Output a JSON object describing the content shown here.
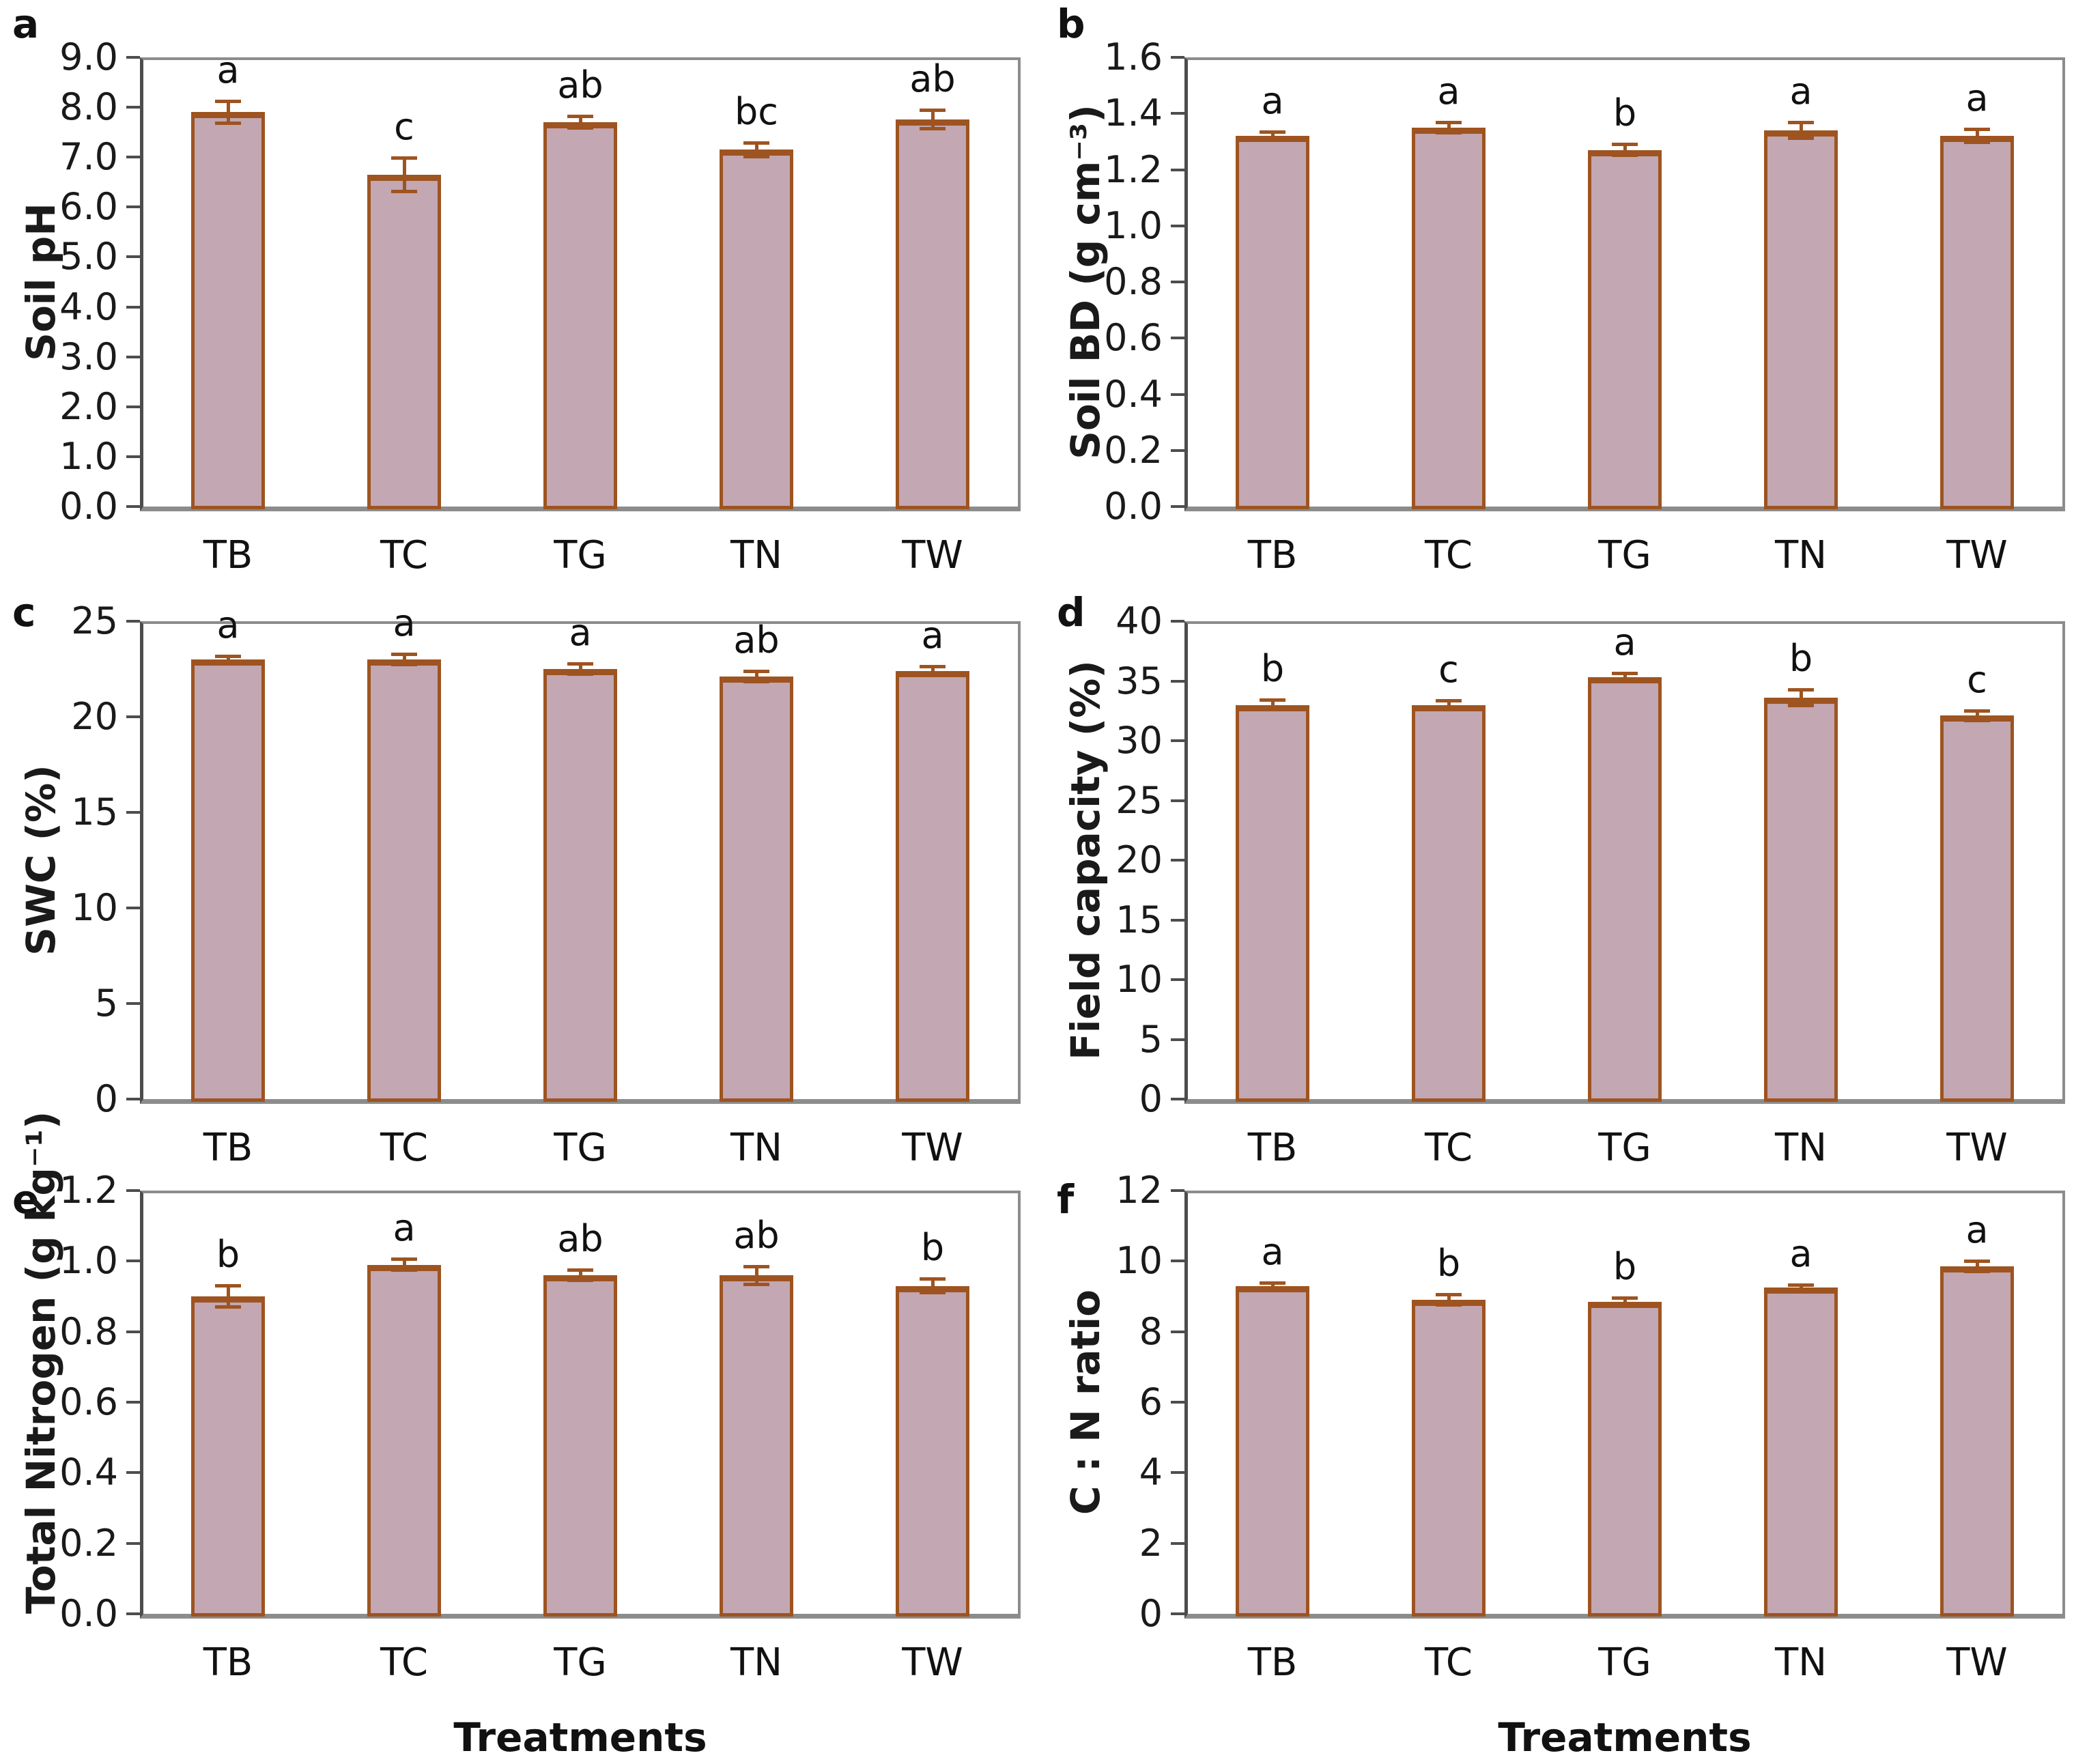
{
  "figure": {
    "background": "#ffffff",
    "panel_letters": [
      "a",
      "b",
      "c",
      "d",
      "e",
      "f"
    ]
  },
  "colors": {
    "bar_fill": "#c3a7b3",
    "bar_border": "#9e5420",
    "error_bar": "#9e5420",
    "axis_left": "#4d4d4d",
    "frame": "#8c8c8c",
    "text": "#1a1a1a"
  },
  "chart_data": [
    {
      "panel": "a",
      "type": "bar",
      "ylabel": "Soil pH",
      "xlabel": "",
      "ylim": [
        0,
        9
      ],
      "grid": false,
      "legend": "none",
      "yticks": [
        "9.0",
        "8.0",
        "7.0",
        "6.0",
        "5.0",
        "4.0",
        "3.0",
        "2.0",
        "1.0",
        "0.0"
      ],
      "categories": [
        "TB",
        "TC",
        "TG",
        "TN",
        "TW"
      ],
      "values": [
        7.9,
        6.65,
        7.7,
        7.15,
        7.75
      ],
      "errors": [
        0.25,
        0.37,
        0.15,
        0.17,
        0.22
      ],
      "letters": [
        "a",
        "c",
        "ab",
        "bc",
        "ab"
      ]
    },
    {
      "panel": "b",
      "type": "bar",
      "ylabel": "Soil BD (g cm⁻³)",
      "xlabel": "",
      "ylim": [
        0,
        1.6
      ],
      "grid": false,
      "legend": "none",
      "yticks": [
        "1.6",
        "1.4",
        "1.2",
        "1.0",
        "0.8",
        "0.6",
        "0.4",
        "0.2",
        "0.0"
      ],
      "categories": [
        "TB",
        "TC",
        "TG",
        "TN",
        "TW"
      ],
      "values": [
        1.32,
        1.35,
        1.27,
        1.34,
        1.32
      ],
      "errors": [
        0.02,
        0.025,
        0.025,
        0.035,
        0.03
      ],
      "letters": [
        "a",
        "a",
        "b",
        "a",
        "a"
      ]
    },
    {
      "panel": "c",
      "type": "bar",
      "ylabel": "SWC (%)",
      "xlabel": "",
      "ylim": [
        0,
        25
      ],
      "grid": false,
      "legend": "none",
      "yticks": [
        "25",
        "20",
        "15",
        "10",
        "5",
        "0"
      ],
      "categories": [
        "TB",
        "TC",
        "TG",
        "TN",
        "TW"
      ],
      "values": [
        23.0,
        23.0,
        22.5,
        22.1,
        22.4
      ],
      "errors": [
        0.25,
        0.35,
        0.35,
        0.35,
        0.3
      ],
      "letters": [
        "a",
        "a",
        "a",
        "ab",
        "a"
      ]
    },
    {
      "panel": "d",
      "type": "bar",
      "ylabel": "Field capacity (%)",
      "xlabel": "",
      "ylim": [
        0,
        40
      ],
      "grid": false,
      "legend": "none",
      "yticks": [
        "40",
        "35",
        "30",
        "25",
        "20",
        "15",
        "10",
        "5",
        "0"
      ],
      "categories": [
        "TB",
        "TC",
        "TG",
        "TN",
        "TW"
      ],
      "values": [
        33.0,
        33.0,
        35.3,
        33.6,
        32.1
      ],
      "errors": [
        0.55,
        0.5,
        0.45,
        0.8,
        0.55
      ],
      "letters": [
        "b",
        "c",
        "a",
        "b",
        "c"
      ]
    },
    {
      "panel": "e",
      "type": "bar",
      "ylabel": "Total Nitrogen (g kg⁻¹)",
      "xlabel": "Treatments",
      "ylim": [
        0,
        1.2
      ],
      "grid": false,
      "legend": "none",
      "yticks": [
        "1.2",
        "1.0",
        "0.8",
        "0.6",
        "0.4",
        "0.2",
        "0.0"
      ],
      "categories": [
        "TB",
        "TC",
        "TG",
        "TN",
        "TW"
      ],
      "values": [
        0.9,
        0.99,
        0.96,
        0.96,
        0.93
      ],
      "errors": [
        0.035,
        0.02,
        0.02,
        0.03,
        0.025
      ],
      "letters": [
        "b",
        "a",
        "ab",
        "ab",
        "b"
      ]
    },
    {
      "panel": "f",
      "type": "bar",
      "ylabel": "C : N ratio",
      "xlabel": "Treatments",
      "ylim": [
        0,
        12
      ],
      "grid": false,
      "legend": "none",
      "yticks": [
        "12",
        "10",
        "8",
        "6",
        "4",
        "2",
        "0"
      ],
      "categories": [
        "TB",
        "TC",
        "TG",
        "TN",
        "TW"
      ],
      "values": [
        9.3,
        8.9,
        8.85,
        9.25,
        9.85
      ],
      "errors": [
        0.12,
        0.2,
        0.15,
        0.12,
        0.2
      ],
      "letters": [
        "a",
        "b",
        "b",
        "a",
        "a"
      ]
    }
  ]
}
